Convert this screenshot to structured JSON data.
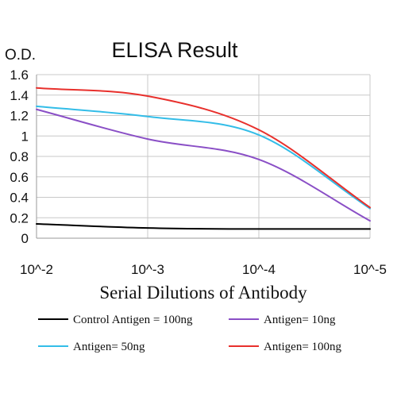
{
  "chart_data": {
    "type": "line",
    "title": "ELISA Result",
    "ylabel": "O.D.",
    "xlabel": "Serial Dilutions of Antibody",
    "x_tick_labels": [
      "10^-2",
      "10^-3",
      "10^-4",
      "10^-5"
    ],
    "x": [
      2,
      3,
      4,
      5
    ],
    "xlim": [
      2,
      5
    ],
    "ylim": [
      0,
      1.6
    ],
    "y_tick_labels": [
      "0",
      "0.2",
      "0.4",
      "0.6",
      "0.8",
      "1",
      "1.2",
      "1.4",
      "1.6"
    ],
    "y_ticks": [
      0,
      0.2,
      0.4,
      0.6,
      0.8,
      1.0,
      1.2,
      1.4,
      1.6
    ],
    "grid": true,
    "legend_placement": "bottom",
    "series": [
      {
        "name": "Control Antigen = 100ng",
        "color": "#000000",
        "values": [
          0.14,
          0.1,
          0.09,
          0.09
        ]
      },
      {
        "name": "Antigen= 10ng",
        "color": "#8a4fc6",
        "values": [
          1.26,
          0.97,
          0.77,
          0.17
        ]
      },
      {
        "name": "Antigen= 50ng",
        "color": "#33bde8",
        "values": [
          1.29,
          1.19,
          1.01,
          0.29
        ]
      },
      {
        "name": "Antigen= 100ng",
        "color": "#e8302c",
        "values": [
          1.47,
          1.39,
          1.06,
          0.3
        ]
      }
    ]
  }
}
